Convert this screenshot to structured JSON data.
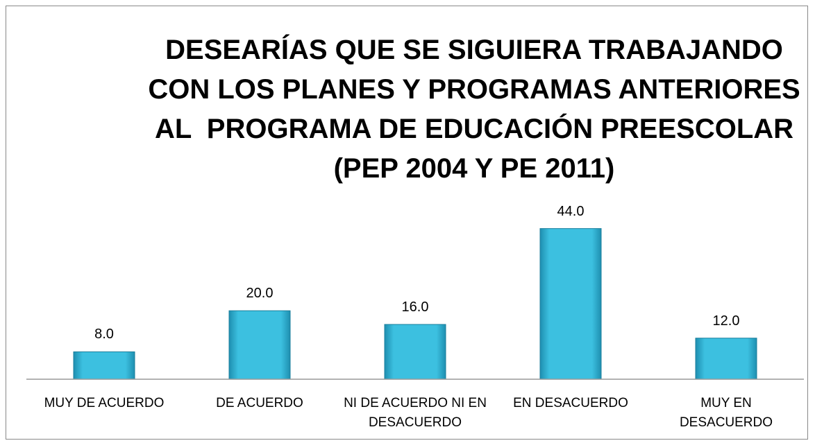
{
  "chart_data": {
    "type": "bar",
    "title": [
      "DESEARÍAS QUE SE SIGUIERA TRABAJANDO",
      "CON LOS PLANES Y PROGRAMAS ANTERIORES",
      "AL  PROGRAMA DE EDUCACIÓN PREESCOLAR",
      "(PEP 2004 Y PE 2011)"
    ],
    "categories": [
      "MUY DE ACUERDO",
      "DE ACUERDO",
      "NI DE ACUERDO NI EN DESACUERDO",
      "EN DESACUERDO",
      "MUY EN DESACUERDO"
    ],
    "values": [
      8,
      20,
      16,
      44,
      12
    ],
    "value_labels": [
      "8.0",
      "20.0",
      "16.0",
      "44.0",
      "12.0"
    ],
    "color": "#35b4d6",
    "ylim": [
      0,
      50
    ]
  }
}
